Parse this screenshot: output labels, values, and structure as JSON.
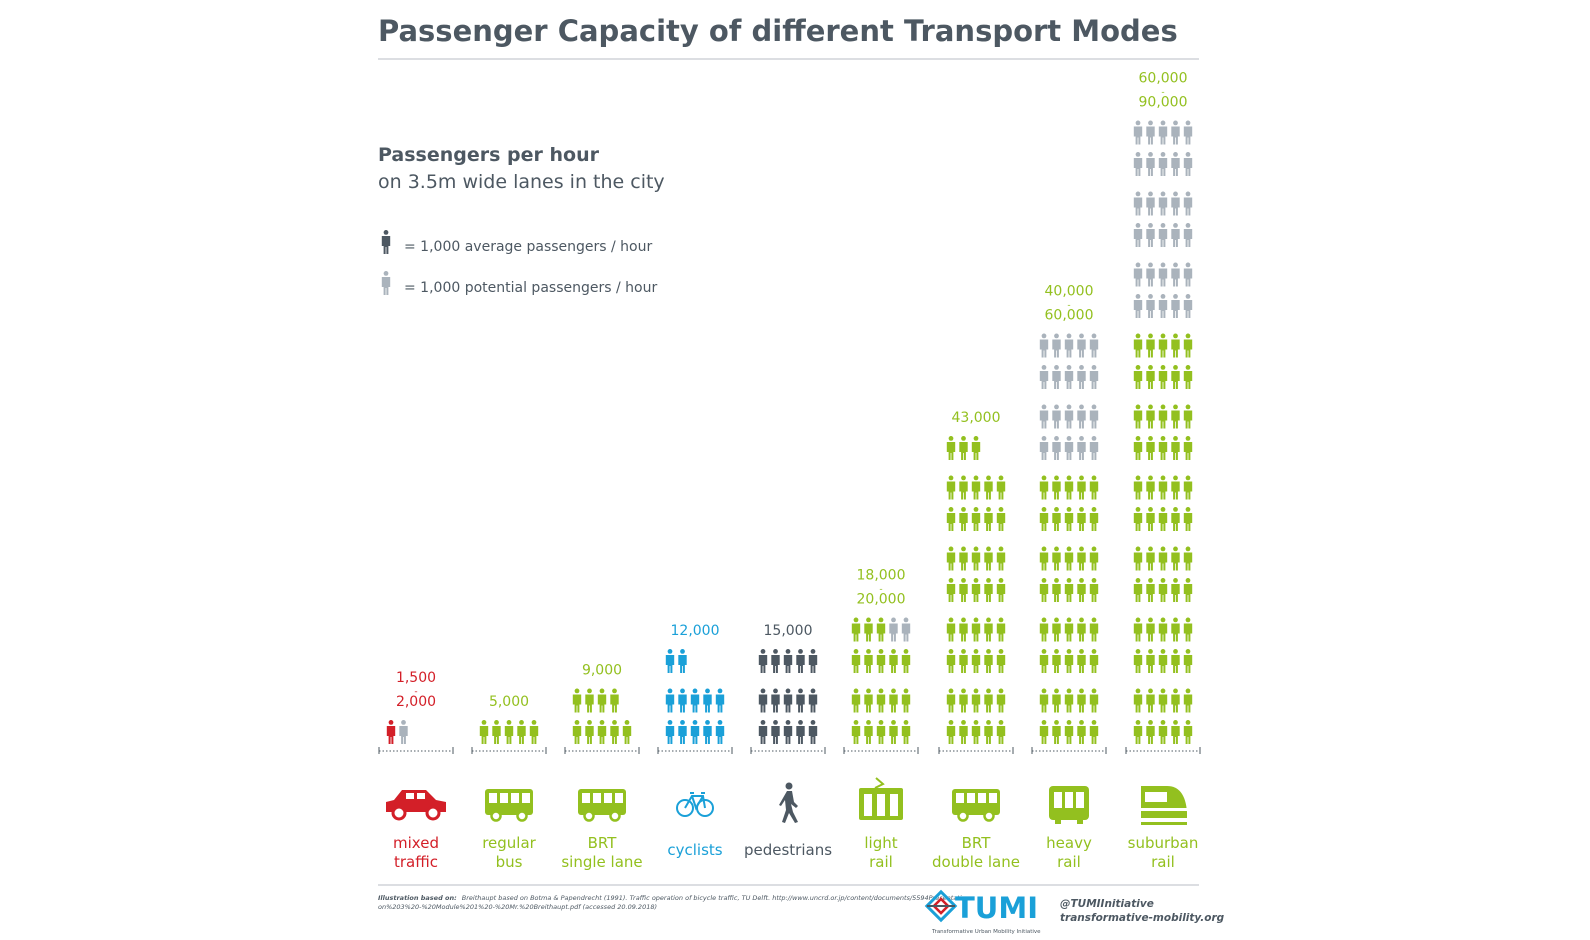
{
  "title": "Passenger Capacity of different Transport Modes",
  "subtitle_bold": "Passengers per hour",
  "subtitle": "on 3.5m wide lanes in the city",
  "legend": [
    {
      "symbol": "dark-person-icon",
      "text": "= 1,000 average passengers / hour",
      "color": "#4d5862"
    },
    {
      "symbol": "grey-person-icon",
      "text": "= 1,000 potential passengers / hour",
      "color": "#aab3bc"
    }
  ],
  "colors": {
    "text_dark": "#4d5862",
    "potential": "#aab3bc",
    "red": "#d31f28",
    "green": "#93c01f",
    "blue": "#1aa0d8",
    "rule": "#d0d4d8"
  },
  "chart_data": {
    "type": "pictogram-bar",
    "unit": "1,000 passengers per hour",
    "modes": [
      {
        "name": "mixed traffic",
        "label_line1": "mixed",
        "label_line2": "traffic",
        "value_text": [
          "1,500",
          "-",
          "2,000"
        ],
        "average": 1,
        "potential": 1,
        "color": "#d31f28",
        "icon": "car-icon"
      },
      {
        "name": "regular bus",
        "label_line1": "regular",
        "label_line2": "bus",
        "value_text": [
          "5,000"
        ],
        "average": 5,
        "potential": 0,
        "color": "#93c01f",
        "icon": "bus-icon"
      },
      {
        "name": "BRT single lane",
        "label_line1": "BRT",
        "label_line2": "single  lane",
        "value_text": [
          "9,000"
        ],
        "average": 9,
        "potential": 0,
        "color": "#93c01f",
        "icon": "brt-bus-icon"
      },
      {
        "name": "cyclists",
        "label_line1": "cyclists",
        "label_line2": "",
        "value_text": [
          "12,000"
        ],
        "average": 12,
        "potential": 0,
        "color": "#1aa0d8",
        "icon": "bicycle-icon"
      },
      {
        "name": "pedestrians",
        "label_line1": "pedestrians",
        "label_line2": "",
        "value_text": [
          "15,000"
        ],
        "average": 15,
        "potential": 0,
        "color": "#4d5862",
        "icon": "walking-person-icon"
      },
      {
        "name": "light rail",
        "label_line1": "light",
        "label_line2": "rail",
        "value_text": [
          "18,000",
          "-",
          "20,000"
        ],
        "average": 18,
        "potential": 2,
        "color": "#93c01f",
        "icon": "tram-icon"
      },
      {
        "name": "BRT double lane",
        "label_line1": "BRT",
        "label_line2": "double lane",
        "value_text": [
          "43,000"
        ],
        "average": 43,
        "potential": 0,
        "color": "#93c01f",
        "icon": "brt-double-bus-icon"
      },
      {
        "name": "heavy rail",
        "label_line1": "heavy",
        "label_line2": "rail",
        "value_text": [
          "40,000",
          "-",
          "60,000"
        ],
        "average": 40,
        "potential": 20,
        "color": "#93c01f",
        "icon": "metro-train-icon"
      },
      {
        "name": "suburban rail",
        "label_line1": "suburban",
        "label_line2": "rail",
        "value_text": [
          "60,000",
          "-",
          "90,000"
        ],
        "average": 60,
        "potential": 30,
        "color": "#93c01f",
        "icon": "suburban-train-icon"
      }
    ]
  },
  "footer": {
    "source_bold": "Illustration based on:",
    "source_text": "Breithaupt based on Botma & Papendrecht (1991). Traffic operation of bicycle traffic, TU Delft. http://www.uncrd.or.jp/content/documents/5594Presentati-",
    "source_text2": "on%203%20-%20Module%201%20-%20Mr.%20Breithaupt.pdf (accessed 20.09.2018)",
    "logo_text": "TUMI",
    "logo_sub": "Transformative Urban Mobility Initiative",
    "handle": "@TUMIInitiative",
    "url": "transformative-mobility.org"
  }
}
